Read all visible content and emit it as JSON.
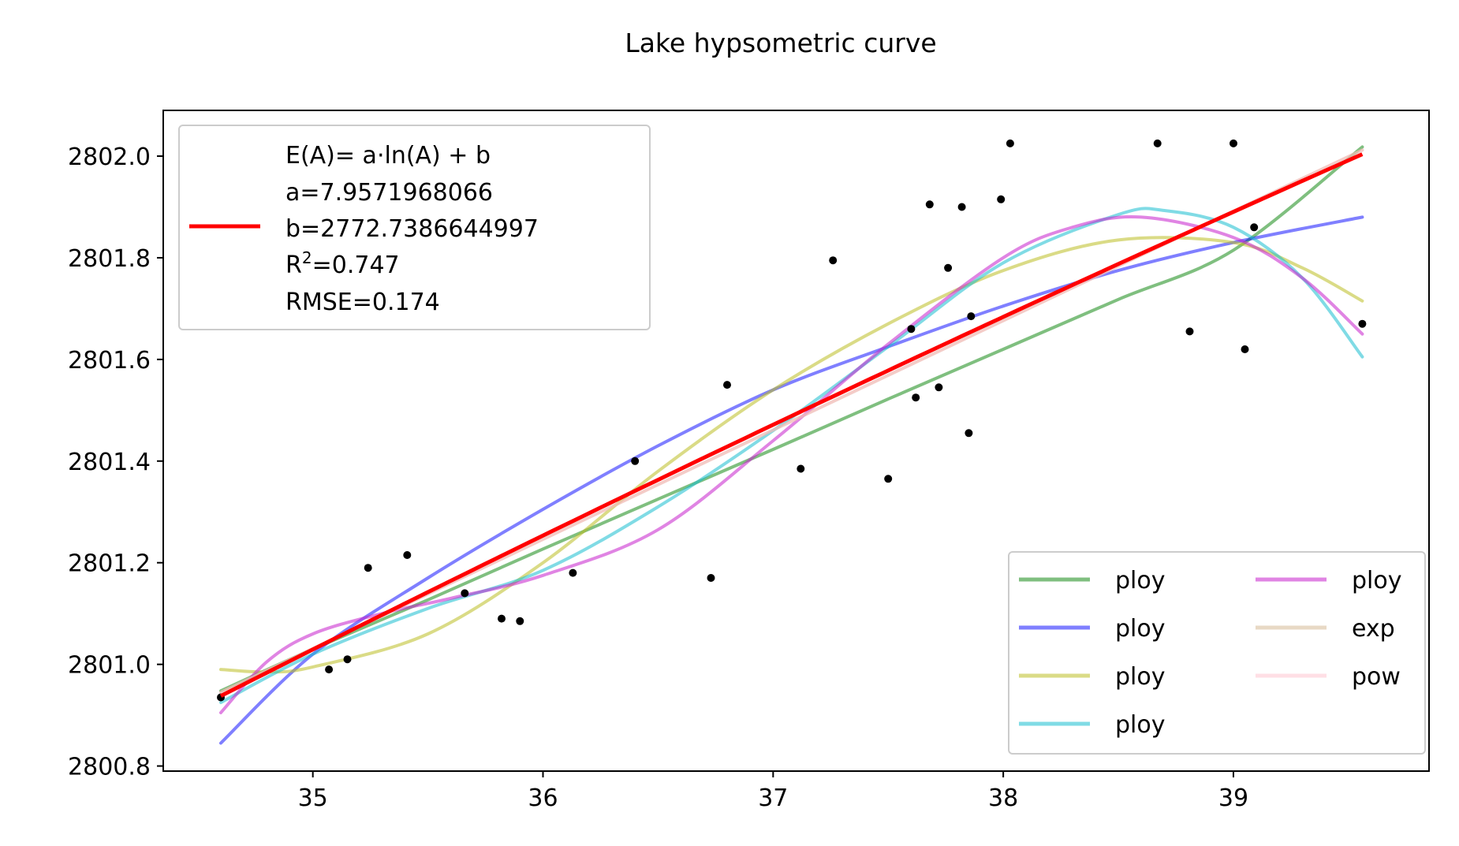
{
  "chart_data": {
    "type": "scatter",
    "title": "Lake hypsometric curve",
    "xlabel": "",
    "ylabel": "",
    "xlim": [
      34.35,
      39.85
    ],
    "ylim": [
      2800.79,
      2802.09
    ],
    "x_ticks": [
      "35",
      "36",
      "37",
      "38",
      "39"
    ],
    "y_ticks": [
      "2800.8",
      "2801.0",
      "2801.2",
      "2801.4",
      "2801.6",
      "2801.8",
      "2802.0"
    ],
    "grid": false,
    "points": {
      "x": [
        34.6,
        35.07,
        35.15,
        35.24,
        35.41,
        35.66,
        35.82,
        35.9,
        36.13,
        36.4,
        36.73,
        36.8,
        37.12,
        37.26,
        37.5,
        37.6,
        37.62,
        37.68,
        37.72,
        37.76,
        37.82,
        37.85,
        37.86,
        37.99,
        38.03,
        38.67,
        38.81,
        39.0,
        39.05,
        39.09,
        39.56
      ],
      "y": [
        2800.935,
        2800.99,
        2801.01,
        2801.19,
        2801.215,
        2801.14,
        2801.09,
        2801.085,
        2801.18,
        2801.4,
        2801.17,
        2801.55,
        2801.385,
        2801.795,
        2801.365,
        2801.66,
        2801.525,
        2801.905,
        2801.545,
        2801.78,
        2801.9,
        2801.455,
        2801.685,
        2801.915,
        2802.025,
        2802.025,
        2801.655,
        2802.025,
        2801.62,
        2801.86,
        2801.67
      ]
    },
    "fit_legend": {
      "text_lines": [
        "E(A)= a·ln(A) + b",
        "a=7.9571968066",
        "b=2772.7386644997",
        "R",
        "=0.747",
        "RMSE=0.174"
      ],
      "superscript": "2",
      "color": "#ff0000",
      "a": 7.9571968066,
      "b": 2772.7386644997
    },
    "series": [
      {
        "name": "ploy",
        "color": "#008000",
        "opacity": 0.5,
        "x": [
          34.6,
          35.0,
          35.5,
          36.0,
          36.5,
          37.0,
          37.5,
          38.0,
          38.5,
          39.0,
          39.56
        ],
        "y": [
          2800.948,
          2801.03,
          2801.127,
          2801.227,
          2801.325,
          2801.423,
          2801.522,
          2801.62,
          2801.718,
          2801.815,
          2802.018
        ]
      },
      {
        "name": "ploy",
        "color": "#0000ff",
        "opacity": 0.5,
        "x": [
          34.6,
          35.0,
          35.5,
          36.0,
          36.5,
          37.0,
          37.5,
          38.0,
          38.5,
          39.0,
          39.56
        ],
        "y": [
          2800.845,
          2801.02,
          2801.17,
          2801.305,
          2801.43,
          2801.54,
          2801.625,
          2801.705,
          2801.775,
          2801.83,
          2801.88
        ]
      },
      {
        "name": "ploy",
        "color": "#bcbd22",
        "opacity": 0.55,
        "x": [
          34.6,
          34.8,
          35.0,
          35.5,
          36.0,
          36.5,
          37.0,
          37.5,
          38.0,
          38.5,
          39.0,
          39.3,
          39.56
        ],
        "y": [
          2800.99,
          2800.985,
          2800.995,
          2801.06,
          2801.2,
          2801.38,
          2801.54,
          2801.67,
          2801.775,
          2801.835,
          2801.83,
          2801.78,
          2801.715
        ]
      },
      {
        "name": "ploy",
        "color": "#17becf",
        "opacity": 0.55,
        "x": [
          34.6,
          35.0,
          35.5,
          36.0,
          36.5,
          37.0,
          37.5,
          38.0,
          38.5,
          38.7,
          39.0,
          39.3,
          39.56
        ],
        "y": [
          2800.925,
          2801.02,
          2801.11,
          2801.185,
          2801.31,
          2801.46,
          2801.625,
          2801.79,
          2801.885,
          2801.893,
          2801.86,
          2801.76,
          2801.605
        ]
      },
      {
        "name": "ploy",
        "color": "#c71fcc",
        "opacity": 0.55,
        "x": [
          34.6,
          34.8,
          35.0,
          35.3,
          35.6,
          36.0,
          36.5,
          37.0,
          37.5,
          38.0,
          38.3,
          38.6,
          39.0,
          39.3,
          39.56
        ],
        "y": [
          2800.905,
          2801.005,
          2801.06,
          2801.1,
          2801.13,
          2801.175,
          2801.265,
          2801.44,
          2801.63,
          2801.8,
          2801.86,
          2801.88,
          2801.84,
          2801.76,
          2801.65
        ]
      },
      {
        "name": "exp",
        "color": "#d2b48c",
        "opacity": 0.5,
        "x": [
          34.6,
          39.56
        ],
        "y": [
          2800.945,
          2802.012
        ]
      },
      {
        "name": "pow",
        "color": "#ffc0cb",
        "opacity": 0.5,
        "x": [
          34.6,
          39.56
        ],
        "y": [
          2800.945,
          2802.012
        ]
      }
    ]
  }
}
